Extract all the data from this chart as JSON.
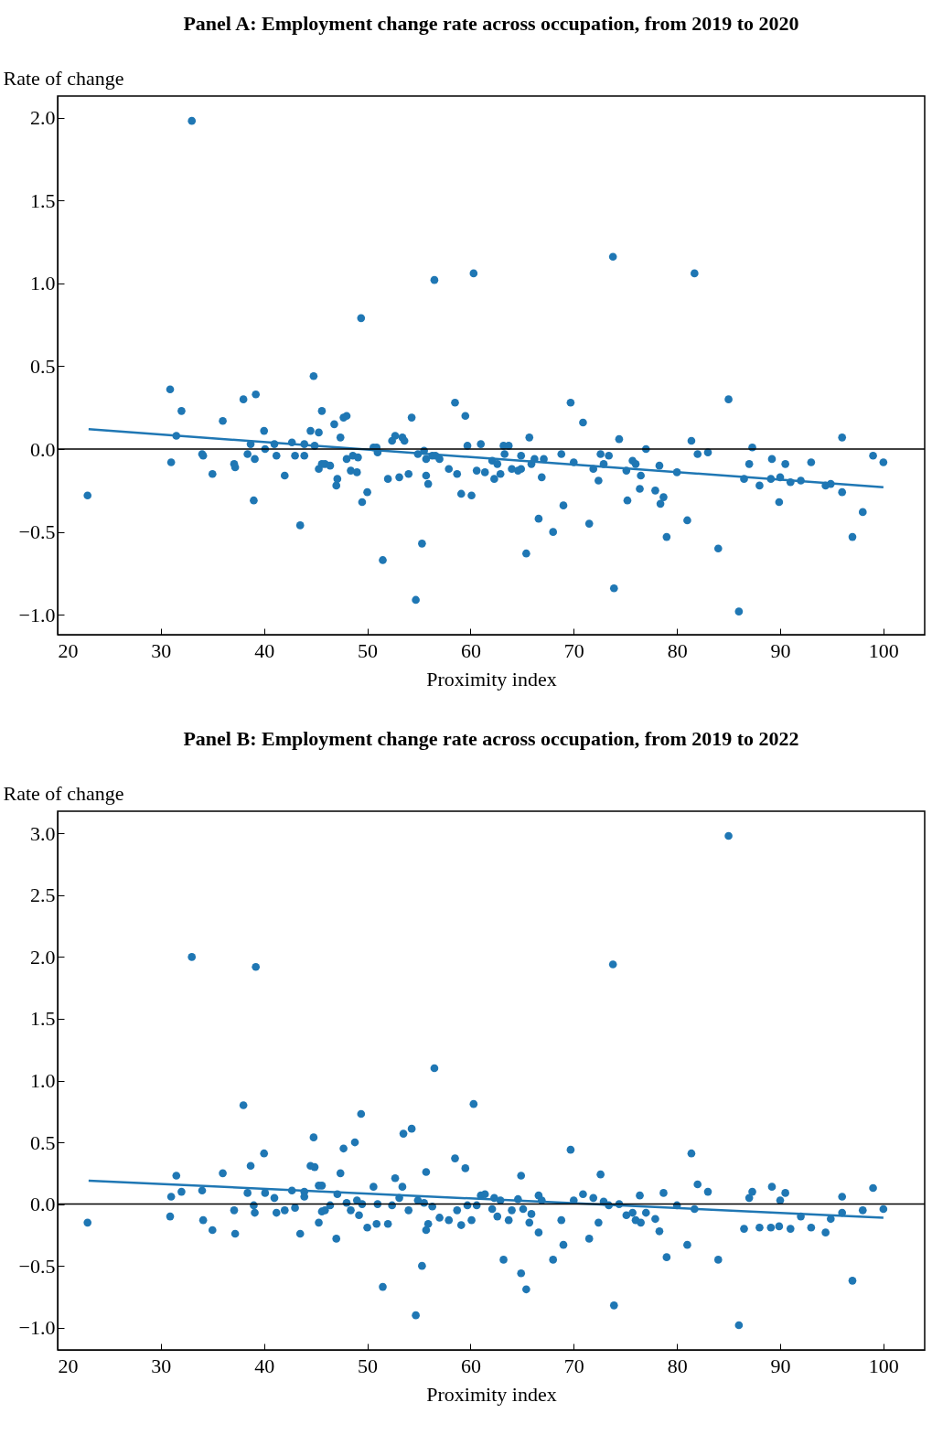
{
  "chart_data": [
    {
      "type": "scatter",
      "title": "Panel A: Employment change rate across occupation, from 2019 to 2020",
      "xlabel": "Proximity index",
      "ylabel": "Rate of change",
      "xlim": [
        20,
        104
      ],
      "xticks": [
        20,
        30,
        40,
        50,
        60,
        70,
        80,
        90,
        100
      ],
      "ylim": [
        -1.12,
        2.13
      ],
      "yticks": [
        {
          "value": -1,
          "label": "−1.0"
        },
        {
          "value": -0.5,
          "label": "−0.5"
        },
        {
          "value": 0,
          "label": "0.0"
        },
        {
          "value": 0.5,
          "label": "0.5"
        },
        {
          "value": 1,
          "label": "1.0"
        },
        {
          "value": 1.5,
          "label": "1.5"
        },
        {
          "value": 2,
          "label": "2.0"
        }
      ],
      "ref_lines": [
        {
          "axis": "y",
          "value": 0,
          "color": "#000000"
        }
      ],
      "series": [
        {
          "marker": "circle",
          "color": "#1f77b4",
          "x": [
            22.9,
            30.9,
            31.0,
            31.5,
            32.0,
            33.0,
            34.0,
            34.1,
            35.0,
            36.0,
            37.1,
            37.2,
            38.0,
            38.4,
            38.7,
            39.0,
            39.2,
            39.1,
            40.0,
            40.1,
            41.0,
            41.2,
            42.0,
            42.7,
            43.0,
            43.5,
            43.9,
            43.9,
            44.5,
            44.8,
            44.9,
            45.3,
            45.3,
            45.6,
            45.6,
            45.9,
            46.4,
            46.8,
            47.0,
            47.1,
            47.4,
            47.7,
            48.0,
            48.0,
            48.6,
            48.4,
            49.0,
            49.1,
            49.4,
            49.5,
            50.0,
            50.6,
            50.9,
            51.0,
            51.5,
            52.0,
            52.4,
            52.7,
            53.1,
            53.4,
            53.6,
            54.0,
            54.3,
            54.7,
            54.9,
            55.3,
            55.5,
            55.7,
            55.7,
            55.9,
            56.3,
            56.5,
            56.6,
            57.0,
            57.9,
            58.5,
            58.7,
            59.1,
            59.5,
            59.7,
            60.1,
            60.3,
            60.6,
            61.0,
            61.4,
            62.1,
            62.3,
            62.6,
            62.9,
            63.2,
            63.3,
            63.7,
            64.0,
            64.6,
            64.9,
            64.9,
            65.4,
            65.7,
            65.9,
            66.2,
            66.6,
            66.9,
            67.1,
            68.0,
            68.8,
            69.0,
            69.7,
            70.0,
            70.9,
            71.5,
            71.9,
            72.4,
            72.6,
            72.9,
            73.4,
            73.8,
            73.9,
            74.4,
            75.1,
            75.2,
            75.7,
            76.0,
            76.4,
            76.5,
            77.0,
            77.9,
            78.3,
            78.4,
            78.7,
            79.0,
            80.0,
            81.0,
            81.4,
            81.7,
            82.0,
            83.0,
            84.0,
            85.0,
            86.0,
            86.5,
            87.0,
            87.3,
            88.0,
            89.2,
            89.1,
            89.9,
            90.0,
            90.5,
            91.0,
            92.0,
            93.0,
            94.4,
            94.9,
            96.0,
            96.0,
            97.0,
            98.0,
            99.0,
            100.0
          ],
          "values": [
            -0.28,
            0.36,
            -0.08,
            0.08,
            0.23,
            1.98,
            -0.03,
            -0.04,
            -0.15,
            0.17,
            -0.09,
            -0.11,
            0.3,
            -0.03,
            0.03,
            -0.31,
            0.33,
            -0.06,
            0.11,
            0.0,
            0.03,
            -0.04,
            -0.16,
            0.04,
            -0.04,
            -0.46,
            0.03,
            -0.04,
            0.11,
            0.44,
            0.02,
            0.1,
            -0.12,
            -0.09,
            0.23,
            -0.09,
            -0.1,
            0.15,
            -0.22,
            -0.18,
            0.07,
            0.19,
            0.2,
            -0.06,
            -0.04,
            -0.13,
            -0.14,
            -0.05,
            0.79,
            -0.32,
            -0.26,
            0.01,
            0.01,
            -0.02,
            -0.67,
            -0.18,
            0.05,
            0.08,
            -0.17,
            0.07,
            0.05,
            -0.15,
            0.19,
            -0.91,
            -0.03,
            -0.57,
            -0.01,
            -0.16,
            -0.06,
            -0.21,
            -0.04,
            1.02,
            -0.04,
            -0.06,
            -0.12,
            0.28,
            -0.15,
            -0.27,
            0.2,
            0.02,
            -0.28,
            1.06,
            -0.13,
            0.03,
            -0.14,
            -0.07,
            -0.18,
            -0.09,
            -0.15,
            0.02,
            -0.03,
            0.02,
            -0.12,
            -0.13,
            -0.04,
            -0.12,
            -0.63,
            0.07,
            -0.09,
            -0.06,
            -0.42,
            -0.17,
            -0.06,
            -0.5,
            -0.03,
            -0.34,
            0.28,
            -0.08,
            0.16,
            -0.45,
            -0.12,
            -0.19,
            -0.03,
            -0.09,
            -0.04,
            1.16,
            -0.84,
            0.06,
            -0.13,
            -0.31,
            -0.07,
            -0.09,
            -0.24,
            -0.16,
            0.0,
            -0.25,
            -0.1,
            -0.33,
            -0.29,
            -0.53,
            -0.14,
            -0.43,
            0.05,
            1.06,
            -0.03,
            -0.02,
            -0.6,
            0.3,
            -0.98,
            -0.18,
            -0.09,
            0.01,
            -0.22,
            -0.06,
            -0.18,
            -0.32,
            -0.17,
            -0.09,
            -0.2,
            -0.19,
            -0.08,
            -0.22,
            -0.21,
            0.07,
            -0.26,
            -0.53,
            -0.38,
            -0.04,
            -0.08
          ]
        },
        {
          "type": "line",
          "color": "#1f77b4",
          "x": [
            23,
            100
          ],
          "values": [
            0.12,
            -0.23
          ]
        }
      ]
    },
    {
      "type": "scatter",
      "title": "Panel B: Employment change rate across occupation, from 2019 to 2022",
      "xlabel": "Proximity index",
      "ylabel": "Rate of change",
      "xlim": [
        20,
        104
      ],
      "xticks": [
        20,
        30,
        40,
        50,
        60,
        70,
        80,
        90,
        100
      ],
      "ylim": [
        -1.18,
        3.18
      ],
      "yticks": [
        {
          "value": -1,
          "label": "−1.0"
        },
        {
          "value": -0.5,
          "label": "−0.5"
        },
        {
          "value": 0,
          "label": "0.0"
        },
        {
          "value": 0.5,
          "label": "0.5"
        },
        {
          "value": 1,
          "label": "1.0"
        },
        {
          "value": 1.5,
          "label": "1.5"
        },
        {
          "value": 2,
          "label": "2.0"
        },
        {
          "value": 2.5,
          "label": "2.5"
        },
        {
          "value": 3,
          "label": "3.0"
        }
      ],
      "ref_lines": [
        {
          "axis": "y",
          "value": 0,
          "color": "#000000"
        }
      ],
      "series": [
        {
          "marker": "circle",
          "color": "#1f77b4",
          "x": [
            22.9,
            30.9,
            31.0,
            31.5,
            32.0,
            33.0,
            34.0,
            34.1,
            35.0,
            36.0,
            37.1,
            37.2,
            38.0,
            38.4,
            38.7,
            39.0,
            39.2,
            39.1,
            40.0,
            40.1,
            41.0,
            41.2,
            42.0,
            42.7,
            43.0,
            43.5,
            43.9,
            43.9,
            44.5,
            44.8,
            44.9,
            45.3,
            45.3,
            45.6,
            45.6,
            45.9,
            46.4,
            47.0,
            47.1,
            47.4,
            47.7,
            48.0,
            48.4,
            48.8,
            49.0,
            49.2,
            49.4,
            49.5,
            50.0,
            50.6,
            50.9,
            51.0,
            51.5,
            52.0,
            52.4,
            52.7,
            53.1,
            53.4,
            53.5,
            54.0,
            54.3,
            54.7,
            54.9,
            55.3,
            55.5,
            55.7,
            55.7,
            55.9,
            56.3,
            56.5,
            57.0,
            57.9,
            58.5,
            58.7,
            59.1,
            59.5,
            59.7,
            60.1,
            60.3,
            60.6,
            61.0,
            61.4,
            62.1,
            62.3,
            62.6,
            62.9,
            63.2,
            63.7,
            64.0,
            64.6,
            64.9,
            64.9,
            65.1,
            65.4,
            65.7,
            65.9,
            66.6,
            66.6,
            66.9,
            68.0,
            68.8,
            69.0,
            69.7,
            70.0,
            70.9,
            71.5,
            71.9,
            72.4,
            72.6,
            72.9,
            73.4,
            73.8,
            73.9,
            74.4,
            75.1,
            75.7,
            76.0,
            76.4,
            76.5,
            77.0,
            77.9,
            78.3,
            78.7,
            79.0,
            80.0,
            81.0,
            81.4,
            81.7,
            82.0,
            83.0,
            84.0,
            85.0,
            86.0,
            86.5,
            87.0,
            87.3,
            88.0,
            89.1,
            89.2,
            89.9,
            90.0,
            90.5,
            91.0,
            92.0,
            93.0,
            94.4,
            94.9,
            96.0,
            96.0,
            97.0,
            98.0,
            99.0,
            100.0
          ],
          "values": [
            -0.15,
            -0.1,
            0.06,
            0.23,
            0.1,
            2.0,
            0.11,
            -0.13,
            -0.21,
            0.25,
            -0.05,
            -0.24,
            0.8,
            0.09,
            0.31,
            -0.01,
            1.92,
            -0.07,
            0.41,
            0.09,
            0.05,
            -0.07,
            -0.05,
            0.11,
            -0.03,
            -0.24,
            0.1,
            0.06,
            0.31,
            0.54,
            0.3,
            0.15,
            -0.15,
            -0.06,
            0.15,
            -0.05,
            -0.01,
            -0.28,
            0.08,
            0.25,
            0.45,
            0.01,
            -0.05,
            0.5,
            0.03,
            -0.09,
            0.73,
            0.0,
            -0.19,
            0.14,
            -0.16,
            0.0,
            -0.67,
            -0.16,
            -0.01,
            0.21,
            0.05,
            0.14,
            0.57,
            -0.05,
            0.61,
            -0.9,
            0.03,
            -0.5,
            0.01,
            -0.21,
            0.26,
            -0.16,
            -0.02,
            1.1,
            -0.11,
            -0.13,
            0.37,
            -0.05,
            -0.17,
            0.29,
            -0.01,
            -0.13,
            0.81,
            -0.01,
            0.07,
            0.08,
            -0.04,
            0.05,
            -0.1,
            0.03,
            -0.45,
            -0.13,
            -0.05,
            0.04,
            -0.56,
            0.23,
            -0.04,
            -0.69,
            -0.15,
            -0.08,
            0.07,
            -0.23,
            0.03,
            -0.45,
            -0.13,
            -0.33,
            0.44,
            0.03,
            0.08,
            -0.28,
            0.05,
            -0.15,
            0.24,
            0.02,
            -0.01,
            1.94,
            -0.82,
            0.0,
            -0.09,
            -0.07,
            -0.13,
            0.07,
            -0.15,
            -0.07,
            -0.12,
            -0.22,
            0.09,
            -0.43,
            -0.01,
            -0.33,
            0.41,
            -0.04,
            0.16,
            0.1,
            -0.45,
            2.98,
            -0.98,
            -0.2,
            0.05,
            0.1,
            -0.19,
            -0.19,
            0.14,
            -0.18,
            0.03,
            0.09,
            -0.2,
            -0.1,
            -0.19,
            -0.23,
            -0.12,
            0.06,
            -0.07,
            -0.62,
            -0.05,
            0.13,
            -0.04
          ]
        },
        {
          "type": "line",
          "color": "#1f77b4",
          "x": [
            23,
            100
          ],
          "values": [
            0.19,
            -0.11
          ]
        }
      ]
    }
  ]
}
